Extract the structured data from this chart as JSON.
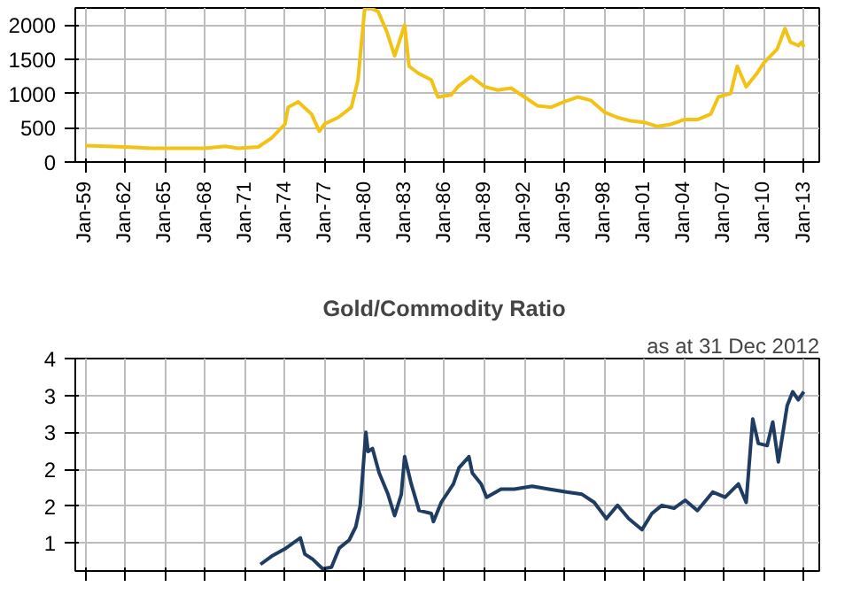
{
  "chart_data": [
    {
      "type": "line",
      "x": [
        "1959-01",
        "1962-01",
        "1964-01",
        "1968-01",
        "1969-07",
        "1970-07",
        "1972-01",
        "1973-01",
        "1974-01",
        "1974-04",
        "1975-01",
        "1976-01",
        "1976-08",
        "1977-01",
        "1978-01",
        "1979-01",
        "1979-07",
        "1980-01",
        "1980-07",
        "1981-01",
        "1981-09",
        "1982-04",
        "1983-01",
        "1983-05",
        "1984-01",
        "1985-01",
        "1985-07",
        "1986-07",
        "1987-01",
        "1988-01",
        "1989-01",
        "1990-01",
        "1991-01",
        "1992-01",
        "1993-01",
        "1994-01",
        "1995-01",
        "1996-01",
        "1997-01",
        "1998-01",
        "1999-01",
        "2000-01",
        "2001-01",
        "2002-01",
        "2003-01",
        "2004-01",
        "2005-01",
        "2006-01",
        "2006-08",
        "2007-07",
        "2008-01",
        "2008-09",
        "2009-07",
        "2010-01",
        "2011-01",
        "2011-08",
        "2012-01",
        "2012-08",
        "2012-11",
        "2013-01"
      ],
      "series": [
        {
          "color": "#f2c314",
          "values": [
            240,
            220,
            200,
            200,
            230,
            200,
            220,
            350,
            550,
            800,
            880,
            700,
            450,
            560,
            650,
            800,
            1200,
            2240,
            2240,
            2200,
            1900,
            1550,
            2000,
            1400,
            1300,
            1200,
            950,
            980,
            1100,
            1250,
            1100,
            1050,
            1080,
            950,
            820,
            800,
            880,
            950,
            900,
            730,
            650,
            600,
            580,
            520,
            550,
            620,
            620,
            700,
            950,
            1000,
            1400,
            1100,
            1300,
            1450,
            1650,
            1950,
            1750,
            1700,
            1750,
            1680
          ]
        }
      ],
      "xlim": [
        "1958-04",
        "2014-03"
      ],
      "ylim": [
        0,
        2250
      ],
      "yticks": [
        0,
        500,
        1000,
        1500,
        2000
      ],
      "xticks": [
        {
          "value": "1959-01",
          "label": "Jan-59"
        },
        {
          "value": "1962-01",
          "label": "Jan-62"
        },
        {
          "value": "1965-01",
          "label": "Jan-65"
        },
        {
          "value": "1968-01",
          "label": "Jan-68"
        },
        {
          "value": "1971-01",
          "label": "Jan-71"
        },
        {
          "value": "1974-01",
          "label": "Jan-74"
        },
        {
          "value": "1977-01",
          "label": "Jan-77"
        },
        {
          "value": "1980-01",
          "label": "Jan-80"
        },
        {
          "value": "1983-01",
          "label": "Jan-83"
        },
        {
          "value": "1986-01",
          "label": "Jan-86"
        },
        {
          "value": "1989-01",
          "label": "Jan-89"
        },
        {
          "value": "1992-01",
          "label": "Jan-92"
        },
        {
          "value": "1995-01",
          "label": "Jan-95"
        },
        {
          "value": "1998-01",
          "label": "Jan-98"
        },
        {
          "value": "2001-01",
          "label": "Jan-01"
        },
        {
          "value": "2004-01",
          "label": "Jan-04"
        },
        {
          "value": "2007-01",
          "label": "Jan-07"
        },
        {
          "value": "2010-01",
          "label": "Jan-10"
        },
        {
          "value": "2013-01",
          "label": "Jan-13"
        }
      ],
      "grid": true
    },
    {
      "type": "line",
      "title": "Gold/Commodity  Ratio",
      "annotations": [
        "as at 31 Dec 2012"
      ],
      "x": [
        "1972-03",
        "1973-01",
        "1974-02",
        "1975-03",
        "1975-07",
        "1976-02",
        "1976-11",
        "1977-07",
        "1978-02",
        "1978-11",
        "1979-05",
        "1979-09",
        "1980-02",
        "1980-04",
        "1980-08",
        "1981-02",
        "1981-10",
        "1982-04",
        "1982-10",
        "1983-01",
        "1983-07",
        "1984-02",
        "1985-01",
        "1985-03",
        "1985-10",
        "1986-09",
        "1987-02",
        "1987-11",
        "1988-02",
        "1988-10",
        "1989-03",
        "1990-04",
        "1991-04",
        "1992-08",
        "1993-11",
        "1995-03",
        "1996-05",
        "1997-04",
        "1998-03",
        "1999-01",
        "1999-11",
        "2000-11",
        "2001-08",
        "2002-05",
        "2003-04",
        "2004-02",
        "2005-01",
        "2006-03",
        "2007-02",
        "2008-02",
        "2008-09",
        "2009-03",
        "2009-08",
        "2010-04",
        "2010-09",
        "2011-02",
        "2011-10",
        "2012-03",
        "2012-08",
        "2013-01"
      ],
      "series": [
        {
          "color": "#1f3d63",
          "values": [
            0.71,
            0.82,
            0.93,
            1.07,
            0.85,
            0.78,
            0.65,
            0.67,
            0.93,
            1.04,
            1.22,
            1.51,
            2.5,
            2.24,
            2.28,
            1.95,
            1.66,
            1.37,
            1.66,
            2.17,
            1.8,
            1.44,
            1.4,
            1.29,
            1.55,
            1.8,
            2.02,
            2.17,
            1.95,
            1.8,
            1.62,
            1.73,
            1.73,
            1.77,
            1.73,
            1.69,
            1.66,
            1.55,
            1.33,
            1.51,
            1.33,
            1.18,
            1.4,
            1.51,
            1.47,
            1.58,
            1.44,
            1.69,
            1.62,
            1.8,
            1.55,
            2.68,
            2.35,
            2.32,
            2.64,
            2.1,
            2.86,
            3.05,
            2.94,
            3.05
          ]
        }
      ],
      "xlim": [
        "1958-04",
        "2014-03"
      ],
      "ylim": [
        0.62,
        3.5
      ],
      "yticks": [
        {
          "value": 1,
          "label": "1"
        },
        {
          "value": 1.5,
          "label": "2"
        },
        {
          "value": 2,
          "label": "2"
        },
        {
          "value": 2.5,
          "label": "3"
        },
        {
          "value": 3,
          "label": "3"
        },
        {
          "value": 3.5,
          "label": "4"
        }
      ],
      "xticks": [
        {
          "value": "1959-01",
          "label": null
        },
        {
          "value": "1962-01",
          "label": null
        },
        {
          "value": "1965-01",
          "label": null
        },
        {
          "value": "1968-01",
          "label": null
        },
        {
          "value": "1971-01",
          "label": null
        },
        {
          "value": "1974-01",
          "label": null
        },
        {
          "value": "1977-01",
          "label": null
        },
        {
          "value": "1980-01",
          "label": null
        },
        {
          "value": "1983-01",
          "label": null
        },
        {
          "value": "1986-01",
          "label": null
        },
        {
          "value": "1989-01",
          "label": null
        },
        {
          "value": "1992-01",
          "label": null
        },
        {
          "value": "1995-01",
          "label": null
        },
        {
          "value": "1998-01",
          "label": null
        },
        {
          "value": "2001-01",
          "label": null
        },
        {
          "value": "2004-01",
          "label": null
        },
        {
          "value": "2007-01",
          "label": null
        },
        {
          "value": "2010-01",
          "label": null
        },
        {
          "value": "2013-01",
          "label": null
        }
      ],
      "grid": true,
      "tick_labels": "y"
    }
  ]
}
